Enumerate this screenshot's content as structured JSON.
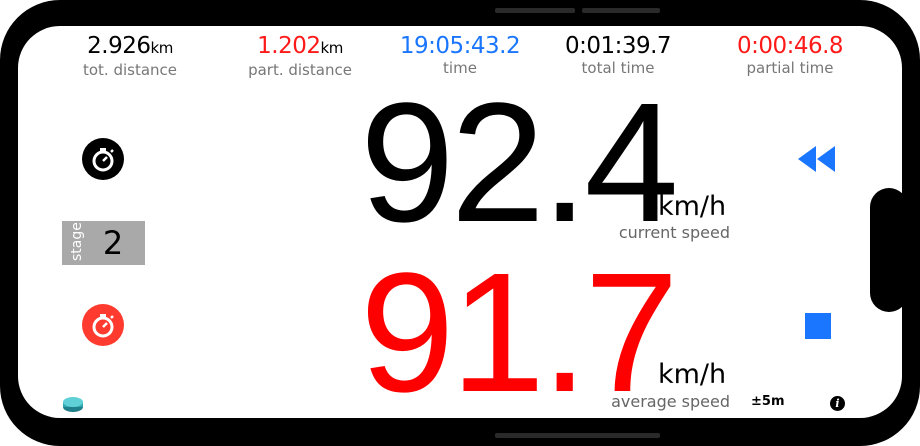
{
  "stats": {
    "tot_distance": {
      "value": "2.926",
      "unit": "km",
      "label": "tot. distance",
      "color": "#000000"
    },
    "part_distance": {
      "value": "1.202",
      "unit": "km",
      "label": "part. distance",
      "color": "#ff1a1a"
    },
    "time": {
      "value": "19:05:43.2",
      "label": "time",
      "color": "#1a76ff"
    },
    "total_time": {
      "value": "0:01:39.7",
      "label": "total time",
      "color": "#000000"
    },
    "partial_time": {
      "value": "0:00:46.8",
      "label": "partial time",
      "color": "#ff1a1a"
    }
  },
  "current_speed": {
    "value": "92.4",
    "unit": "km/h",
    "label": "current speed",
    "color": "#000000"
  },
  "average_speed": {
    "value": "91.7",
    "unit": "km/h",
    "label": "average speed",
    "color": "#ff0000"
  },
  "stage": {
    "label": "stage",
    "value": "2"
  },
  "gps_accuracy": "±5m",
  "icons": {
    "stopwatch_main": "stopwatch-icon",
    "stopwatch_partial": "stopwatch-icon",
    "rewind": "rewind-icon",
    "stop": "stop-icon",
    "info": "info-icon",
    "puck": "puck-icon"
  },
  "colors": {
    "accent_blue": "#1a76ff",
    "accent_red": "#ff1a1a",
    "stopwatch_red": "#ff3b2f"
  }
}
